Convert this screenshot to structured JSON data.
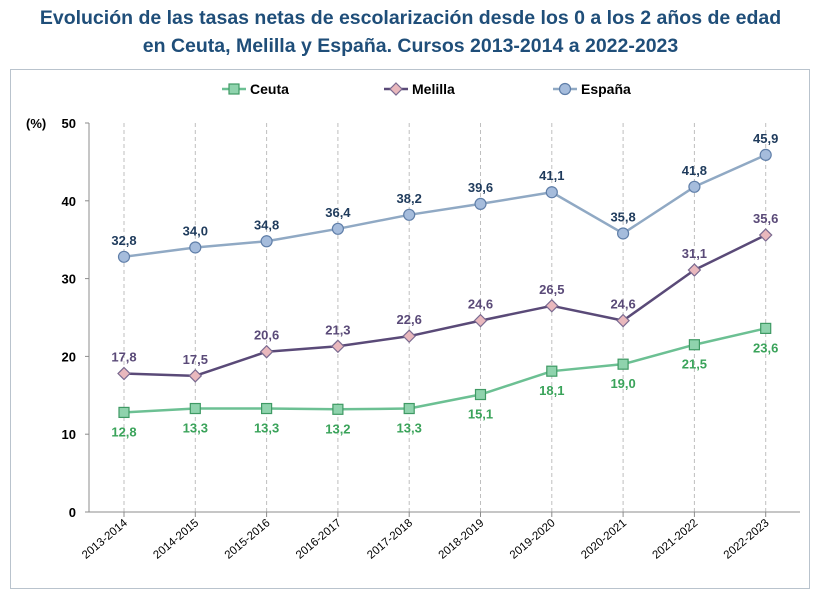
{
  "chart_data": {
    "type": "line",
    "title_line1": "Evolución de las tasas netas de escolarización desde los 0 a los 2 años de edad",
    "title_line2": "en Ceuta, Melilla y España. Cursos 2013-2014 a 2022-2023",
    "ylabel": "(%)",
    "ylim": [
      0,
      50
    ],
    "yticks": [
      "0",
      "10",
      "20",
      "30",
      "40",
      "50"
    ],
    "grid": "vertical-dashed",
    "legend_position": "top-center",
    "categories": [
      "2013-2014",
      "2014-2015",
      "2015-2016",
      "2016-2017",
      "2017-2018",
      "2018-2019",
      "2019-2020",
      "2020-2021",
      "2021-2022",
      "2022-2023"
    ],
    "series": [
      {
        "name": "Ceuta",
        "marker": "square",
        "line_color": "#6cc093",
        "fill_color": "#8fd3ad",
        "label_color": "#3aa35a",
        "label_position": "below",
        "values": [
          12.8,
          13.3,
          13.3,
          13.2,
          13.3,
          15.1,
          18.1,
          19.0,
          21.5,
          23.6
        ],
        "labels": [
          "12,8",
          "13,3",
          "13,3",
          "13,2",
          "13,3",
          "15,1",
          "18,1",
          "19,0",
          "21,5",
          "23,6"
        ]
      },
      {
        "name": "Melilla",
        "marker": "diamond",
        "line_color": "#5a4a78",
        "fill_color": "#e9b8bd",
        "label_color": "#5a4a78",
        "label_position": "above",
        "values": [
          17.8,
          17.5,
          20.6,
          21.3,
          22.6,
          24.6,
          26.5,
          24.6,
          31.1,
          35.6
        ],
        "labels": [
          "17,8",
          "17,5",
          "20,6",
          "21,3",
          "22,6",
          "24,6",
          "26,5",
          "24,6",
          "31,1",
          "35,6"
        ]
      },
      {
        "name": "España",
        "marker": "circle",
        "line_color": "#90a9c4",
        "fill_color": "#a5bcdc",
        "label_color": "#1f3b5c",
        "label_position": "above",
        "values": [
          32.8,
          34.0,
          34.8,
          36.4,
          38.2,
          39.6,
          41.1,
          35.8,
          41.8,
          45.9
        ],
        "labels": [
          "32,8",
          "34,0",
          "34,8",
          "36,4",
          "38,2",
          "39,6",
          "41,1",
          "35,8",
          "41,8",
          "45,9"
        ]
      }
    ]
  }
}
